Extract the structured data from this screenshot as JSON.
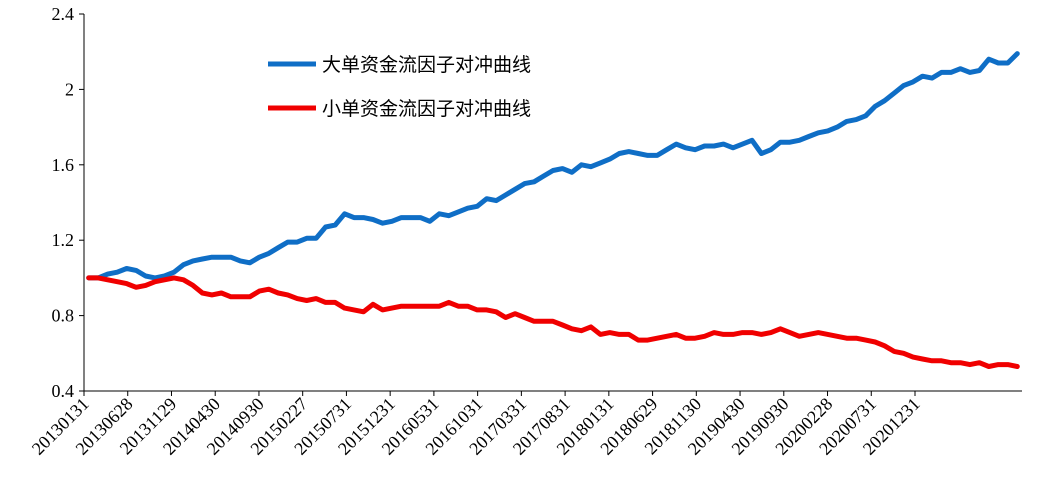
{
  "chart_data": {
    "type": "line",
    "title": "",
    "xlabel": "",
    "ylabel": "",
    "ylim": [
      0.4,
      2.4
    ],
    "yticks": [
      "0.4",
      "0.8",
      "1.2",
      "1.6",
      "2",
      "2.4"
    ],
    "grid": false,
    "legend_position": "top-left",
    "xtick_labels": [
      "20130131",
      "20130628",
      "20131129",
      "20140430",
      "20140930",
      "20150227",
      "20150731",
      "20151231",
      "20160531",
      "20161031",
      "20170331",
      "20170831",
      "20180131",
      "20180629",
      "20181130",
      "20190430",
      "20190930",
      "20200228",
      "20200731",
      "20201231"
    ],
    "series": [
      {
        "name": "大单资金流因子对冲曲线",
        "color": "#0f6ec6",
        "values": [
          1.0,
          1.0,
          1.02,
          1.03,
          1.05,
          1.04,
          1.01,
          1.0,
          1.01,
          1.03,
          1.07,
          1.09,
          1.1,
          1.11,
          1.11,
          1.11,
          1.09,
          1.08,
          1.11,
          1.13,
          1.16,
          1.19,
          1.19,
          1.21,
          1.21,
          1.27,
          1.28,
          1.34,
          1.32,
          1.32,
          1.31,
          1.29,
          1.3,
          1.32,
          1.32,
          1.32,
          1.3,
          1.34,
          1.33,
          1.35,
          1.37,
          1.38,
          1.42,
          1.41,
          1.44,
          1.47,
          1.5,
          1.51,
          1.54,
          1.57,
          1.58,
          1.56,
          1.6,
          1.59,
          1.61,
          1.63,
          1.66,
          1.67,
          1.66,
          1.65,
          1.65,
          1.68,
          1.71,
          1.69,
          1.68,
          1.7,
          1.7,
          1.71,
          1.69,
          1.71,
          1.73,
          1.66,
          1.68,
          1.72,
          1.72,
          1.73,
          1.75,
          1.77,
          1.78,
          1.8,
          1.83,
          1.84,
          1.86,
          1.91,
          1.94,
          1.98,
          2.02,
          2.04,
          2.07,
          2.06,
          2.09,
          2.09,
          2.11,
          2.09,
          2.1,
          2.16,
          2.14,
          2.14,
          2.19
        ]
      },
      {
        "name": "小单资金流因子对冲曲线",
        "color": "#f00000",
        "values": [
          1.0,
          1.0,
          0.99,
          0.98,
          0.97,
          0.95,
          0.96,
          0.98,
          0.99,
          1.0,
          0.99,
          0.96,
          0.92,
          0.91,
          0.92,
          0.9,
          0.9,
          0.9,
          0.93,
          0.94,
          0.92,
          0.91,
          0.89,
          0.88,
          0.89,
          0.87,
          0.87,
          0.84,
          0.83,
          0.82,
          0.86,
          0.83,
          0.84,
          0.85,
          0.85,
          0.85,
          0.85,
          0.85,
          0.87,
          0.85,
          0.85,
          0.83,
          0.83,
          0.82,
          0.79,
          0.81,
          0.79,
          0.77,
          0.77,
          0.77,
          0.75,
          0.73,
          0.72,
          0.74,
          0.7,
          0.71,
          0.7,
          0.7,
          0.67,
          0.67,
          0.68,
          0.69,
          0.7,
          0.68,
          0.68,
          0.69,
          0.71,
          0.7,
          0.7,
          0.71,
          0.71,
          0.7,
          0.71,
          0.73,
          0.71,
          0.69,
          0.7,
          0.71,
          0.7,
          0.69,
          0.68,
          0.68,
          0.67,
          0.66,
          0.64,
          0.61,
          0.6,
          0.58,
          0.57,
          0.56,
          0.56,
          0.55,
          0.55,
          0.54,
          0.55,
          0.53,
          0.54,
          0.54,
          0.53
        ]
      }
    ]
  }
}
